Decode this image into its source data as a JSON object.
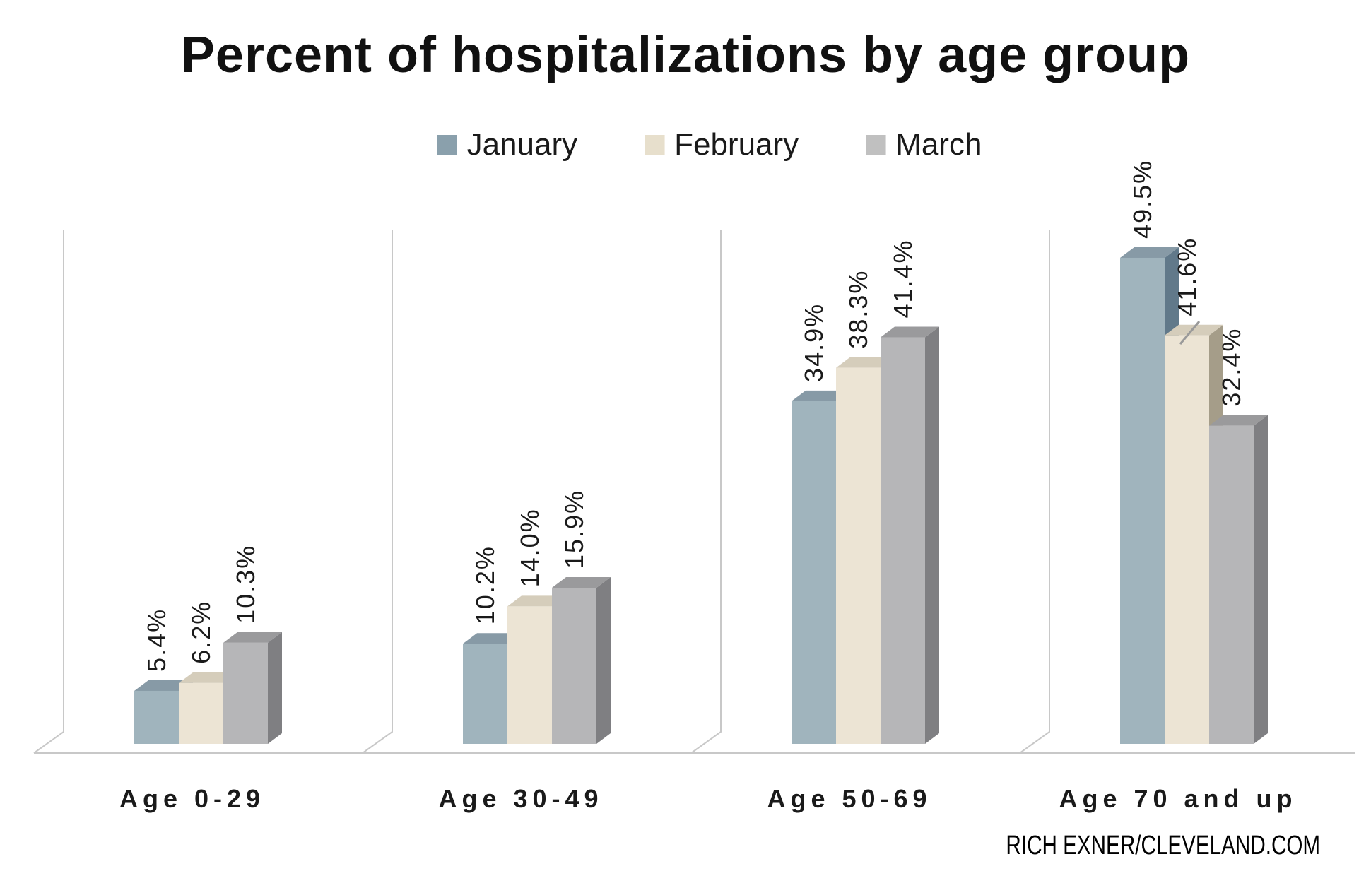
{
  "title": "Percent of hospitalizations by age group",
  "credit": "RICH EXNER/CLEVELAND.COM",
  "legend": {
    "position": "top"
  },
  "chart_data": {
    "type": "bar",
    "style": "3d-clustered-column",
    "title": "Percent of hospitalizations by age group",
    "categories": [
      "Age 0-29",
      "Age 30-49",
      "Age 50-69",
      "Age 70 and up"
    ],
    "series": [
      {
        "name": "January",
        "values": [
          5.4,
          10.2,
          34.9,
          49.5
        ],
        "labels": [
          "5.4%",
          "10.2%",
          "34.9%",
          "49.5%"
        ],
        "color": "#a0b4bd",
        "top_color": "#879aa6",
        "side_color": "#61798a",
        "legend_color": "#8aa0ac"
      },
      {
        "name": "February",
        "values": [
          6.2,
          14.0,
          38.3,
          41.6
        ],
        "labels": [
          "6.2%",
          "14.0%",
          "38.3%",
          "41.6%"
        ],
        "color": "#ece4d4",
        "top_color": "#d5cdbb",
        "side_color": "#a59d89",
        "legend_color": "#e7dfcc"
      },
      {
        "name": "March",
        "values": [
          10.3,
          15.9,
          41.4,
          32.4
        ],
        "labels": [
          "10.3%",
          "15.9%",
          "41.4%",
          "32.4%"
        ],
        "color": "#b6b6b8",
        "top_color": "#9a9a9c",
        "side_color": "#7f7f82",
        "legend_color": "#c0c0c0"
      }
    ],
    "value_suffix": "%",
    "ylim": [
      0,
      55
    ],
    "grid": false,
    "axis_line_color": "#c8c8c8",
    "label_color": "#1a1a1a",
    "label_rotation_deg": 90,
    "legend_position": "top",
    "xlabel": "",
    "ylabel": ""
  }
}
